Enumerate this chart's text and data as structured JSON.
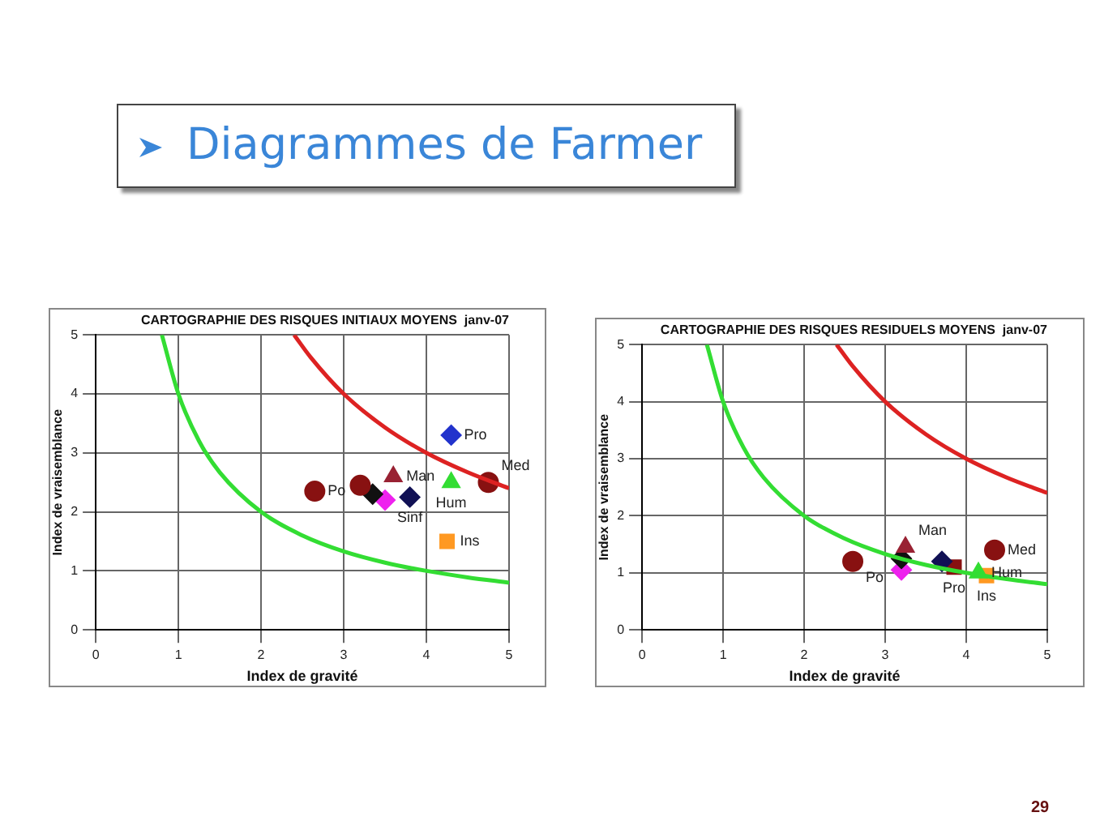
{
  "chart_data": [
    {
      "type": "scatter",
      "title": "CARTOGRAPHIE DES RISQUES INITIAUX MOYENS  janv-07",
      "xlabel": "Index de gravité",
      "ylabel": "Index de vraisemblance",
      "annotations": [
        "Diagrammes de Farmer"
      ],
      "xlim": [
        0,
        5
      ],
      "ylim": [
        0,
        5
      ],
      "xticks": [
        0,
        1,
        2,
        3,
        4,
        5
      ],
      "yticks": [
        0,
        1,
        2,
        3,
        4,
        5
      ],
      "grid": true,
      "legend": false,
      "series": [
        {
          "type": "line",
          "color": "#33dd33",
          "marker": "none",
          "x": [
            0.8,
            1,
            1.25,
            1.5,
            2,
            2.5,
            3,
            3.5,
            4,
            4.5,
            5
          ],
          "values": [
            5,
            4,
            3.2,
            2.67,
            2,
            1.6,
            1.33,
            1.14,
            1,
            0.89,
            0.8
          ]
        },
        {
          "type": "line",
          "color": "#dd2222",
          "marker": "none",
          "x": [
            2.4,
            2.6,
            3,
            3.5,
            4,
            4.5,
            5
          ],
          "values": [
            5,
            4.62,
            4,
            3.43,
            3,
            2.67,
            2.4
          ]
        },
        {
          "name": "Pro",
          "color": "#2233cc",
          "marker": "diamond",
          "x": [
            4.3
          ],
          "values": [
            3.3
          ]
        },
        {
          "name": "Man",
          "color": "#992233",
          "marker": "triangle",
          "x": [
            3.6
          ],
          "values": [
            2.6
          ]
        },
        {
          "name": "Hum",
          "color": "#33dd33",
          "marker": "triangle",
          "x": [
            4.3
          ],
          "values": [
            2.5
          ]
        },
        {
          "name": "Med",
          "color": "#881111",
          "marker": "circle",
          "x": [
            4.75
          ],
          "values": [
            2.5
          ]
        },
        {
          "name": "Po",
          "color": "#881111",
          "marker": "circle",
          "x": [
            2.65
          ],
          "values": [
            2.35
          ]
        },
        {
          "color": "#881111",
          "marker": "circle",
          "x": [
            3.2
          ],
          "values": [
            2.45
          ]
        },
        {
          "color": "#111111",
          "marker": "diamond",
          "x": [
            3.35
          ],
          "values": [
            2.3
          ]
        },
        {
          "color": "#ee22ee",
          "marker": "diamond",
          "x": [
            3.5
          ],
          "values": [
            2.2
          ]
        },
        {
          "name": "Sinf",
          "color": "#111155",
          "marker": "diamond",
          "x": [
            3.8
          ],
          "values": [
            2.25
          ]
        },
        {
          "name": "Ins",
          "color": "#ff9922",
          "marker": "square",
          "x": [
            4.25
          ],
          "values": [
            1.5
          ]
        }
      ]
    },
    {
      "type": "scatter",
      "title": "CARTOGRAPHIE DES RISQUES RESIDUELS MOYENS  janv-07",
      "xlabel": "Index de gravité",
      "ylabel": "Index de vraisemblance",
      "annotations": [
        "29"
      ],
      "xlim": [
        0,
        5
      ],
      "ylim": [
        0,
        5
      ],
      "xticks": [
        0,
        1,
        2,
        3,
        4,
        5
      ],
      "yticks": [
        0,
        1,
        2,
        3,
        4,
        5
      ],
      "grid": true,
      "legend": false,
      "series": [
        {
          "type": "line",
          "color": "#33dd33",
          "marker": "none",
          "x": [
            0.8,
            1,
            1.25,
            1.5,
            2,
            2.5,
            3,
            3.5,
            4,
            4.5,
            5
          ],
          "values": [
            5,
            4,
            3.2,
            2.67,
            2,
            1.6,
            1.33,
            1.14,
            1,
            0.89,
            0.8
          ]
        },
        {
          "type": "line",
          "color": "#dd2222",
          "marker": "none",
          "x": [
            2.4,
            2.6,
            3,
            3.5,
            4,
            4.5,
            5
          ],
          "values": [
            5,
            4.62,
            4,
            3.43,
            3,
            2.67,
            2.4
          ]
        },
        {
          "name": "Po",
          "color": "#881111",
          "marker": "circle",
          "x": [
            2.6
          ],
          "values": [
            1.2
          ]
        },
        {
          "name": "Man",
          "color": "#992233",
          "marker": "triangle",
          "x": [
            3.25
          ],
          "values": [
            1.45
          ]
        },
        {
          "color": "#111111",
          "marker": "diamond",
          "x": [
            3.2
          ],
          "values": [
            1.25
          ]
        },
        {
          "color": "#ee22ee",
          "marker": "diamond",
          "x": [
            3.2
          ],
          "values": [
            1.05
          ]
        },
        {
          "color": "#111155",
          "marker": "diamond",
          "x": [
            3.7
          ],
          "values": [
            1.2
          ]
        },
        {
          "name": "Pro",
          "color": "#881111",
          "marker": "square",
          "x": [
            3.85
          ],
          "values": [
            1.1
          ]
        },
        {
          "name": "Hum",
          "color": "#33dd33",
          "marker": "triangle",
          "x": [
            4.15
          ],
          "values": [
            1.0
          ]
        },
        {
          "name": "Ins",
          "color": "#ff9922",
          "marker": "square",
          "x": [
            4.25
          ],
          "values": [
            0.95
          ]
        },
        {
          "name": "Med",
          "color": "#881111",
          "marker": "circle",
          "x": [
            4.35
          ],
          "values": [
            1.4
          ]
        }
      ]
    }
  ]
}
